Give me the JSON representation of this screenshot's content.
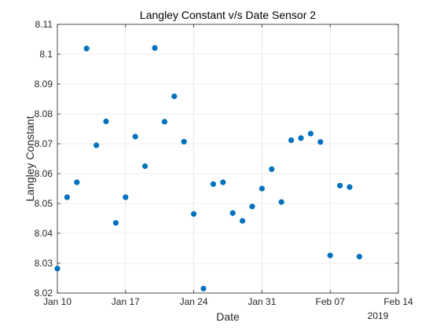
{
  "chart_data": {
    "type": "scatter",
    "title": "Langley Constant v/s Date Sensor 2",
    "xlabel": "Date",
    "ylabel": "Langley Constant",
    "x_ticks": [
      {
        "date": "2019-01-10",
        "label": "Jan 10"
      },
      {
        "date": "2019-01-17",
        "label": "Jan 17"
      },
      {
        "date": "2019-01-24",
        "label": "Jan 24"
      },
      {
        "date": "2019-01-31",
        "label": "Jan 31"
      },
      {
        "date": "2019-02-07",
        "label": "Feb 07"
      },
      {
        "date": "2019-02-14",
        "label": "Feb 14"
      }
    ],
    "x_secondary_label": "2019",
    "xlim": [
      "2019-01-10",
      "2019-02-14"
    ],
    "ylim": [
      8.02,
      8.11
    ],
    "y_ticks": [
      "8.02",
      "8.03",
      "8.04",
      "8.05",
      "8.06",
      "8.07",
      "8.08",
      "8.09",
      "8.1",
      "8.11"
    ],
    "grid": true,
    "marker_color": "#0072BD",
    "points": [
      {
        "x": "2019-01-10",
        "y": 8.0282
      },
      {
        "x": "2019-01-11",
        "y": 8.0521
      },
      {
        "x": "2019-01-12",
        "y": 8.0571
      },
      {
        "x": "2019-01-13",
        "y": 8.1019
      },
      {
        "x": "2019-01-14",
        "y": 8.0695
      },
      {
        "x": "2019-01-15",
        "y": 8.0775
      },
      {
        "x": "2019-01-16",
        "y": 8.0435
      },
      {
        "x": "2019-01-17",
        "y": 8.0521
      },
      {
        "x": "2019-01-18",
        "y": 8.0724
      },
      {
        "x": "2019-01-19",
        "y": 8.0625
      },
      {
        "x": "2019-01-20",
        "y": 8.1021
      },
      {
        "x": "2019-01-21",
        "y": 8.0774
      },
      {
        "x": "2019-01-22",
        "y": 8.0859
      },
      {
        "x": "2019-01-23",
        "y": 8.0707
      },
      {
        "x": "2019-01-24",
        "y": 8.0465
      },
      {
        "x": "2019-01-25",
        "y": 8.0215
      },
      {
        "x": "2019-01-26",
        "y": 8.0565
      },
      {
        "x": "2019-01-27",
        "y": 8.0571
      },
      {
        "x": "2019-01-28",
        "y": 8.0468
      },
      {
        "x": "2019-01-29",
        "y": 8.0442
      },
      {
        "x": "2019-01-30",
        "y": 8.049
      },
      {
        "x": "2019-01-31",
        "y": 8.055
      },
      {
        "x": "2019-02-01",
        "y": 8.0615
      },
      {
        "x": "2019-02-02",
        "y": 8.0505
      },
      {
        "x": "2019-02-03",
        "y": 8.0712
      },
      {
        "x": "2019-02-04",
        "y": 8.0719
      },
      {
        "x": "2019-02-05",
        "y": 8.0734
      },
      {
        "x": "2019-02-06",
        "y": 8.0706
      },
      {
        "x": "2019-02-07",
        "y": 8.0326
      },
      {
        "x": "2019-02-08",
        "y": 8.056
      },
      {
        "x": "2019-02-09",
        "y": 8.0555
      },
      {
        "x": "2019-02-10",
        "y": 8.0322
      }
    ]
  }
}
